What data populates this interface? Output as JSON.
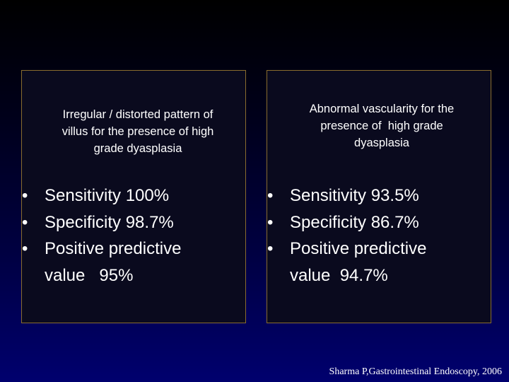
{
  "left_panel": {
    "heading_lines": [
      "Irregular / distorted pattern of",
      "villus for the presence of high",
      "grade dyasplasia"
    ],
    "bullets": [
      {
        "lines": [
          "Sensitivity 100%"
        ]
      },
      {
        "lines": [
          "Specificity 98.7%"
        ]
      },
      {
        "lines": [
          "Positive predictive",
          "value   95%"
        ]
      }
    ]
  },
  "right_panel": {
    "heading_lines": [
      "Abnormal vascularity for the",
      "presence of  high grade",
      "dyasplasia"
    ],
    "bullets": [
      {
        "lines": [
          "Sensitivity 93.5%"
        ]
      },
      {
        "lines": [
          "Specificity 86.7%"
        ]
      },
      {
        "lines": [
          "Positive predictive",
          "value  94.7%"
        ]
      }
    ]
  },
  "bullet_symbol": "•",
  "citation": "Sharma P,Gastrointestinal Endoscopy, 2006",
  "colors": {
    "panel_border": "#8a6d2e",
    "panel_fill": "#0a0a1e",
    "text": "#ffffff",
    "background_bottom": "#00006e"
  }
}
